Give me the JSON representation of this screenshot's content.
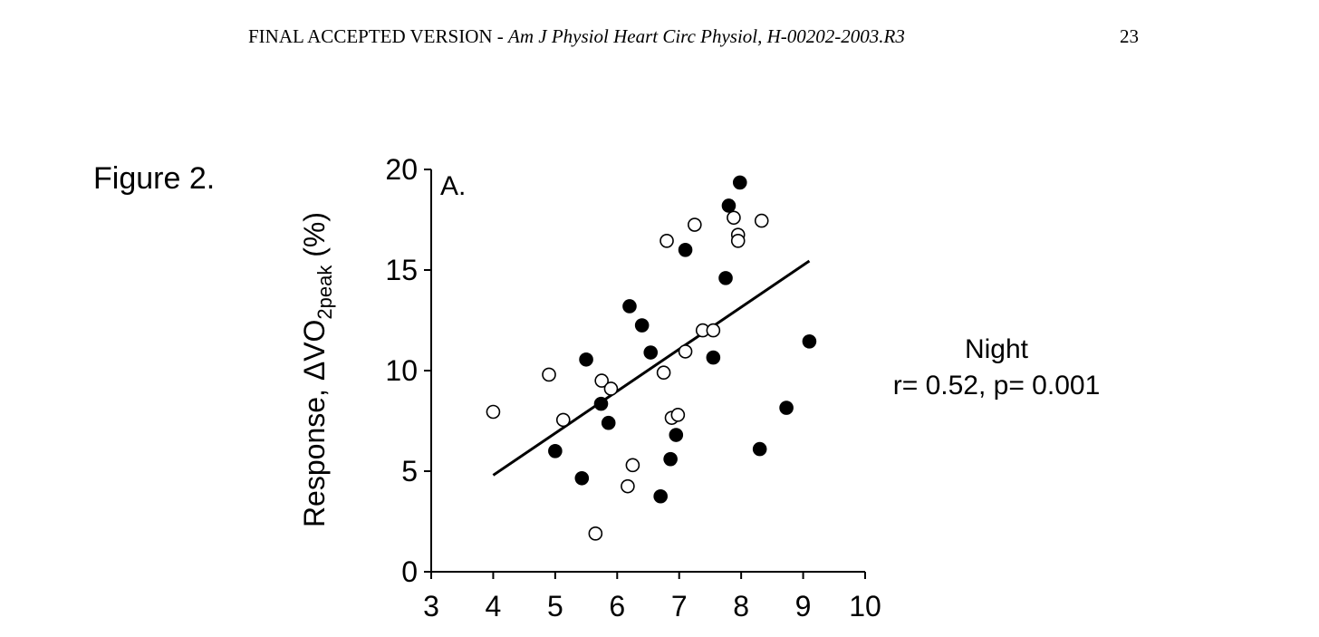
{
  "header": {
    "prefix": "FINAL ACCEPTED VERSION - ",
    "journal": "Am J Physiol Heart Circ Physiol, H-00202-2003.R3",
    "page_number": "23"
  },
  "figure_label": "Figure 2.",
  "annotation": {
    "line1": "Night",
    "line2": "r= 0.52, p= 0.001"
  },
  "chart_data": {
    "type": "scatter",
    "panel_label": "A.",
    "xlabel": "",
    "ylabel_main": "Response, ΔVO",
    "ylabel_sub": "2peak",
    "ylabel_unit": " (%)",
    "xlim": [
      3,
      10
    ],
    "ylim": [
      0,
      20
    ],
    "xticks": [
      3,
      4,
      5,
      6,
      7,
      8,
      9,
      10
    ],
    "yticks": [
      0,
      5,
      10,
      15,
      20
    ],
    "grid": false,
    "series": [
      {
        "marker": "filled-circle",
        "points": [
          [
            5.0,
            6.0
          ],
          [
            5.43,
            4.65
          ],
          [
            5.5,
            10.55
          ],
          [
            5.74,
            8.35
          ],
          [
            5.86,
            7.4
          ],
          [
            6.2,
            13.2
          ],
          [
            6.4,
            12.25
          ],
          [
            6.54,
            10.9
          ],
          [
            6.7,
            3.75
          ],
          [
            6.86,
            5.6
          ],
          [
            6.95,
            6.8
          ],
          [
            7.1,
            16.0
          ],
          [
            7.55,
            10.65
          ],
          [
            7.75,
            14.6
          ],
          [
            7.8,
            18.2
          ],
          [
            7.98,
            19.35
          ],
          [
            8.3,
            6.1
          ],
          [
            8.73,
            8.15
          ],
          [
            9.1,
            11.45
          ]
        ]
      },
      {
        "marker": "open-circle",
        "points": [
          [
            4.0,
            7.95
          ],
          [
            4.9,
            9.8
          ],
          [
            5.13,
            7.55
          ],
          [
            5.65,
            1.9
          ],
          [
            5.75,
            9.5
          ],
          [
            5.9,
            9.1
          ],
          [
            6.17,
            4.25
          ],
          [
            6.25,
            5.3
          ],
          [
            6.75,
            9.9
          ],
          [
            6.8,
            16.45
          ],
          [
            6.88,
            7.65
          ],
          [
            6.98,
            7.8
          ],
          [
            7.1,
            10.95
          ],
          [
            7.25,
            17.25
          ],
          [
            7.38,
            12.0
          ],
          [
            7.55,
            12.0
          ],
          [
            7.88,
            17.6
          ],
          [
            7.95,
            16.75
          ],
          [
            7.95,
            16.45
          ],
          [
            8.33,
            17.45
          ]
        ]
      }
    ],
    "regression_line": {
      "x": [
        4.0,
        9.1
      ],
      "y": [
        4.8,
        15.45
      ]
    }
  },
  "colors": {
    "filled_marker": "#000000",
    "open_marker_fill": "#ffffff",
    "axis": "#000000"
  }
}
